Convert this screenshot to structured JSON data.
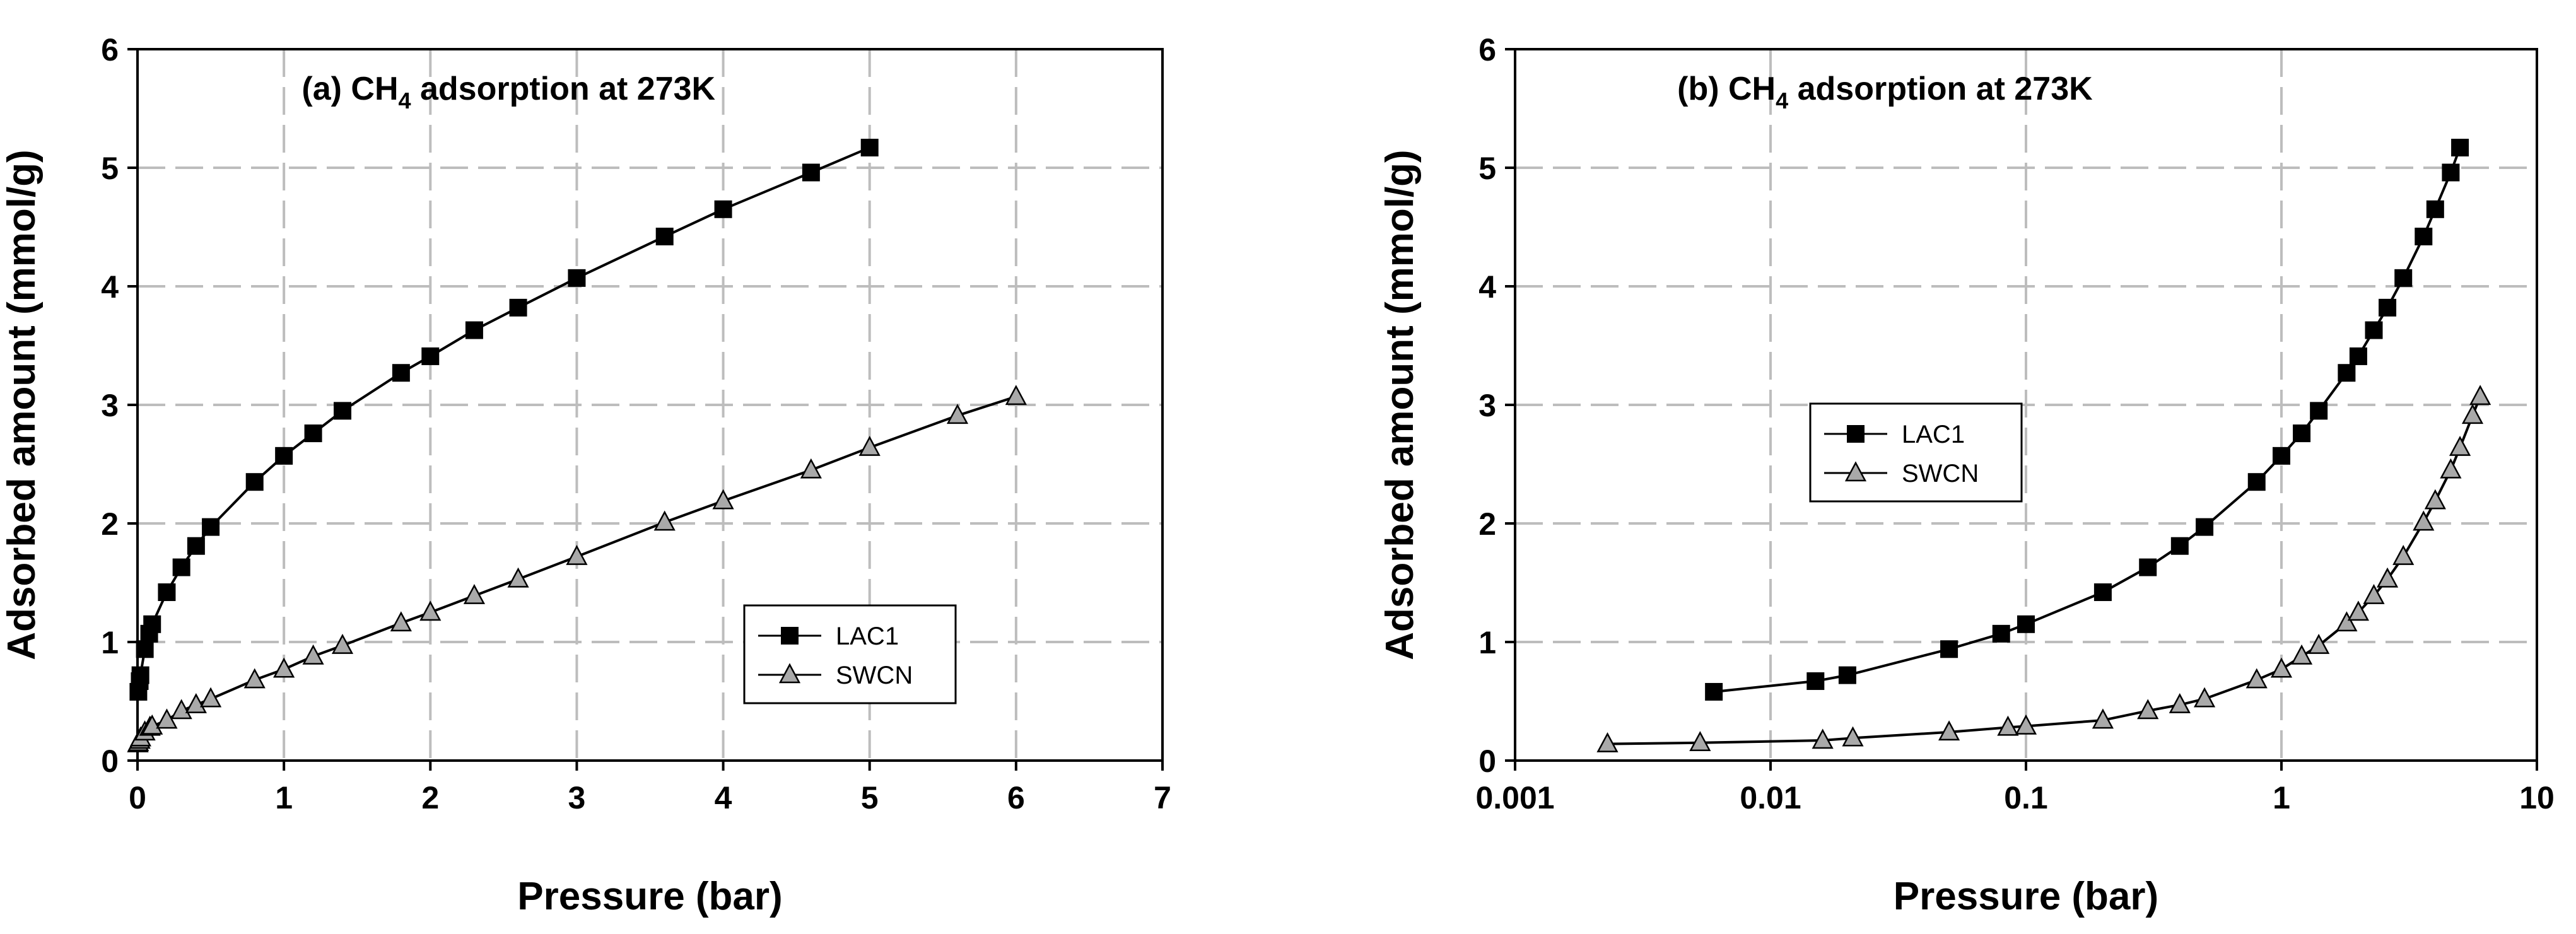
{
  "chart_data": [
    {
      "type": "line",
      "title": "(a) CH",
      "title_sub": "4",
      "title_rest": " adsorption at 273K",
      "xlabel": "Pressure (bar)",
      "ylabel": "Adsorbed amount (mmol/g)",
      "xscale": "linear",
      "xlim": [
        0,
        7
      ],
      "ylim": [
        0,
        6
      ],
      "xticks": [
        0,
        1,
        2,
        3,
        4,
        5,
        6,
        7
      ],
      "xtick_labels": [
        "0",
        "1",
        "2",
        "3",
        "4",
        "5",
        "6",
        "7"
      ],
      "yticks": [
        0,
        1,
        2,
        3,
        4,
        5,
        6
      ],
      "ytick_labels": [
        "0",
        "1",
        "2",
        "3",
        "4",
        "5",
        "6"
      ],
      "grid": true,
      "legend_position": "lower-right",
      "series": [
        {
          "name": "LAC1",
          "marker": "square",
          "color": "#000000",
          "x": [
            0.006,
            0.015,
            0.02,
            0.05,
            0.08,
            0.1,
            0.2,
            0.3,
            0.4,
            0.5,
            0.8,
            1.0,
            1.2,
            1.4,
            1.8,
            2.0,
            2.3,
            2.6,
            3.0,
            3.6,
            4.0,
            4.6,
            5.0
          ],
          "y": [
            0.58,
            0.67,
            0.72,
            0.94,
            1.07,
            1.15,
            1.42,
            1.63,
            1.81,
            1.97,
            2.35,
            2.57,
            2.76,
            2.95,
            3.27,
            3.41,
            3.63,
            3.82,
            4.07,
            4.42,
            4.65,
            4.96,
            5.17
          ]
        },
        {
          "name": "SWCN",
          "marker": "triangle",
          "color": "#a9a9a9",
          "x": [
            0.0023,
            0.0053,
            0.016,
            0.021,
            0.05,
            0.085,
            0.1,
            0.2,
            0.3,
            0.4,
            0.5,
            0.8,
            1.0,
            1.2,
            1.4,
            1.8,
            2.0,
            2.3,
            2.6,
            3.0,
            3.6,
            4.0,
            4.6,
            5.0,
            5.6,
            6.0
          ],
          "y": [
            0.14,
            0.15,
            0.17,
            0.19,
            0.24,
            0.28,
            0.29,
            0.34,
            0.42,
            0.47,
            0.52,
            0.68,
            0.77,
            0.88,
            0.97,
            1.16,
            1.25,
            1.39,
            1.53,
            1.72,
            2.01,
            2.19,
            2.45,
            2.64,
            2.91,
            3.07
          ]
        }
      ]
    },
    {
      "type": "line",
      "title": "(b) CH",
      "title_sub": "4",
      "title_rest": " adsorption at 273K",
      "xlabel": "Pressure (bar)",
      "ylabel": "Adsorbed amount (mmol/g)",
      "xscale": "log",
      "xlim": [
        0.001,
        10
      ],
      "ylim": [
        0,
        6
      ],
      "xticks": [
        0.001,
        0.01,
        0.1,
        1,
        10
      ],
      "xtick_labels": [
        "0.001",
        "0.01",
        "0.1",
        "1",
        "10"
      ],
      "yticks": [
        0,
        1,
        2,
        3,
        4,
        5,
        6
      ],
      "ytick_labels": [
        "0",
        "1",
        "2",
        "3",
        "4",
        "5",
        "6"
      ],
      "grid": true,
      "legend_position": "upper-left-center",
      "series": [
        {
          "name": "LAC1",
          "marker": "square",
          "color": "#000000",
          "x": [
            0.006,
            0.015,
            0.02,
            0.05,
            0.08,
            0.1,
            0.2,
            0.3,
            0.4,
            0.5,
            0.8,
            1.0,
            1.2,
            1.4,
            1.8,
            2.0,
            2.3,
            2.6,
            3.0,
            3.6,
            4.0,
            4.6,
            5.0
          ],
          "y": [
            0.58,
            0.67,
            0.72,
            0.94,
            1.07,
            1.15,
            1.42,
            1.63,
            1.81,
            1.97,
            2.35,
            2.57,
            2.76,
            2.95,
            3.27,
            3.41,
            3.63,
            3.82,
            4.07,
            4.42,
            4.65,
            4.96,
            5.17
          ]
        },
        {
          "name": "SWCN",
          "marker": "triangle",
          "color": "#a9a9a9",
          "x": [
            0.0023,
            0.0053,
            0.016,
            0.021,
            0.05,
            0.085,
            0.1,
            0.2,
            0.3,
            0.4,
            0.5,
            0.8,
            1.0,
            1.2,
            1.4,
            1.8,
            2.0,
            2.3,
            2.6,
            3.0,
            3.6,
            4.0,
            4.6,
            5.0,
            5.6,
            6.0
          ],
          "y": [
            0.14,
            0.15,
            0.17,
            0.19,
            0.24,
            0.28,
            0.29,
            0.34,
            0.42,
            0.47,
            0.52,
            0.68,
            0.77,
            0.88,
            0.97,
            1.16,
            1.25,
            1.39,
            1.53,
            1.72,
            2.01,
            2.19,
            2.45,
            2.64,
            2.91,
            3.07
          ]
        }
      ]
    }
  ]
}
